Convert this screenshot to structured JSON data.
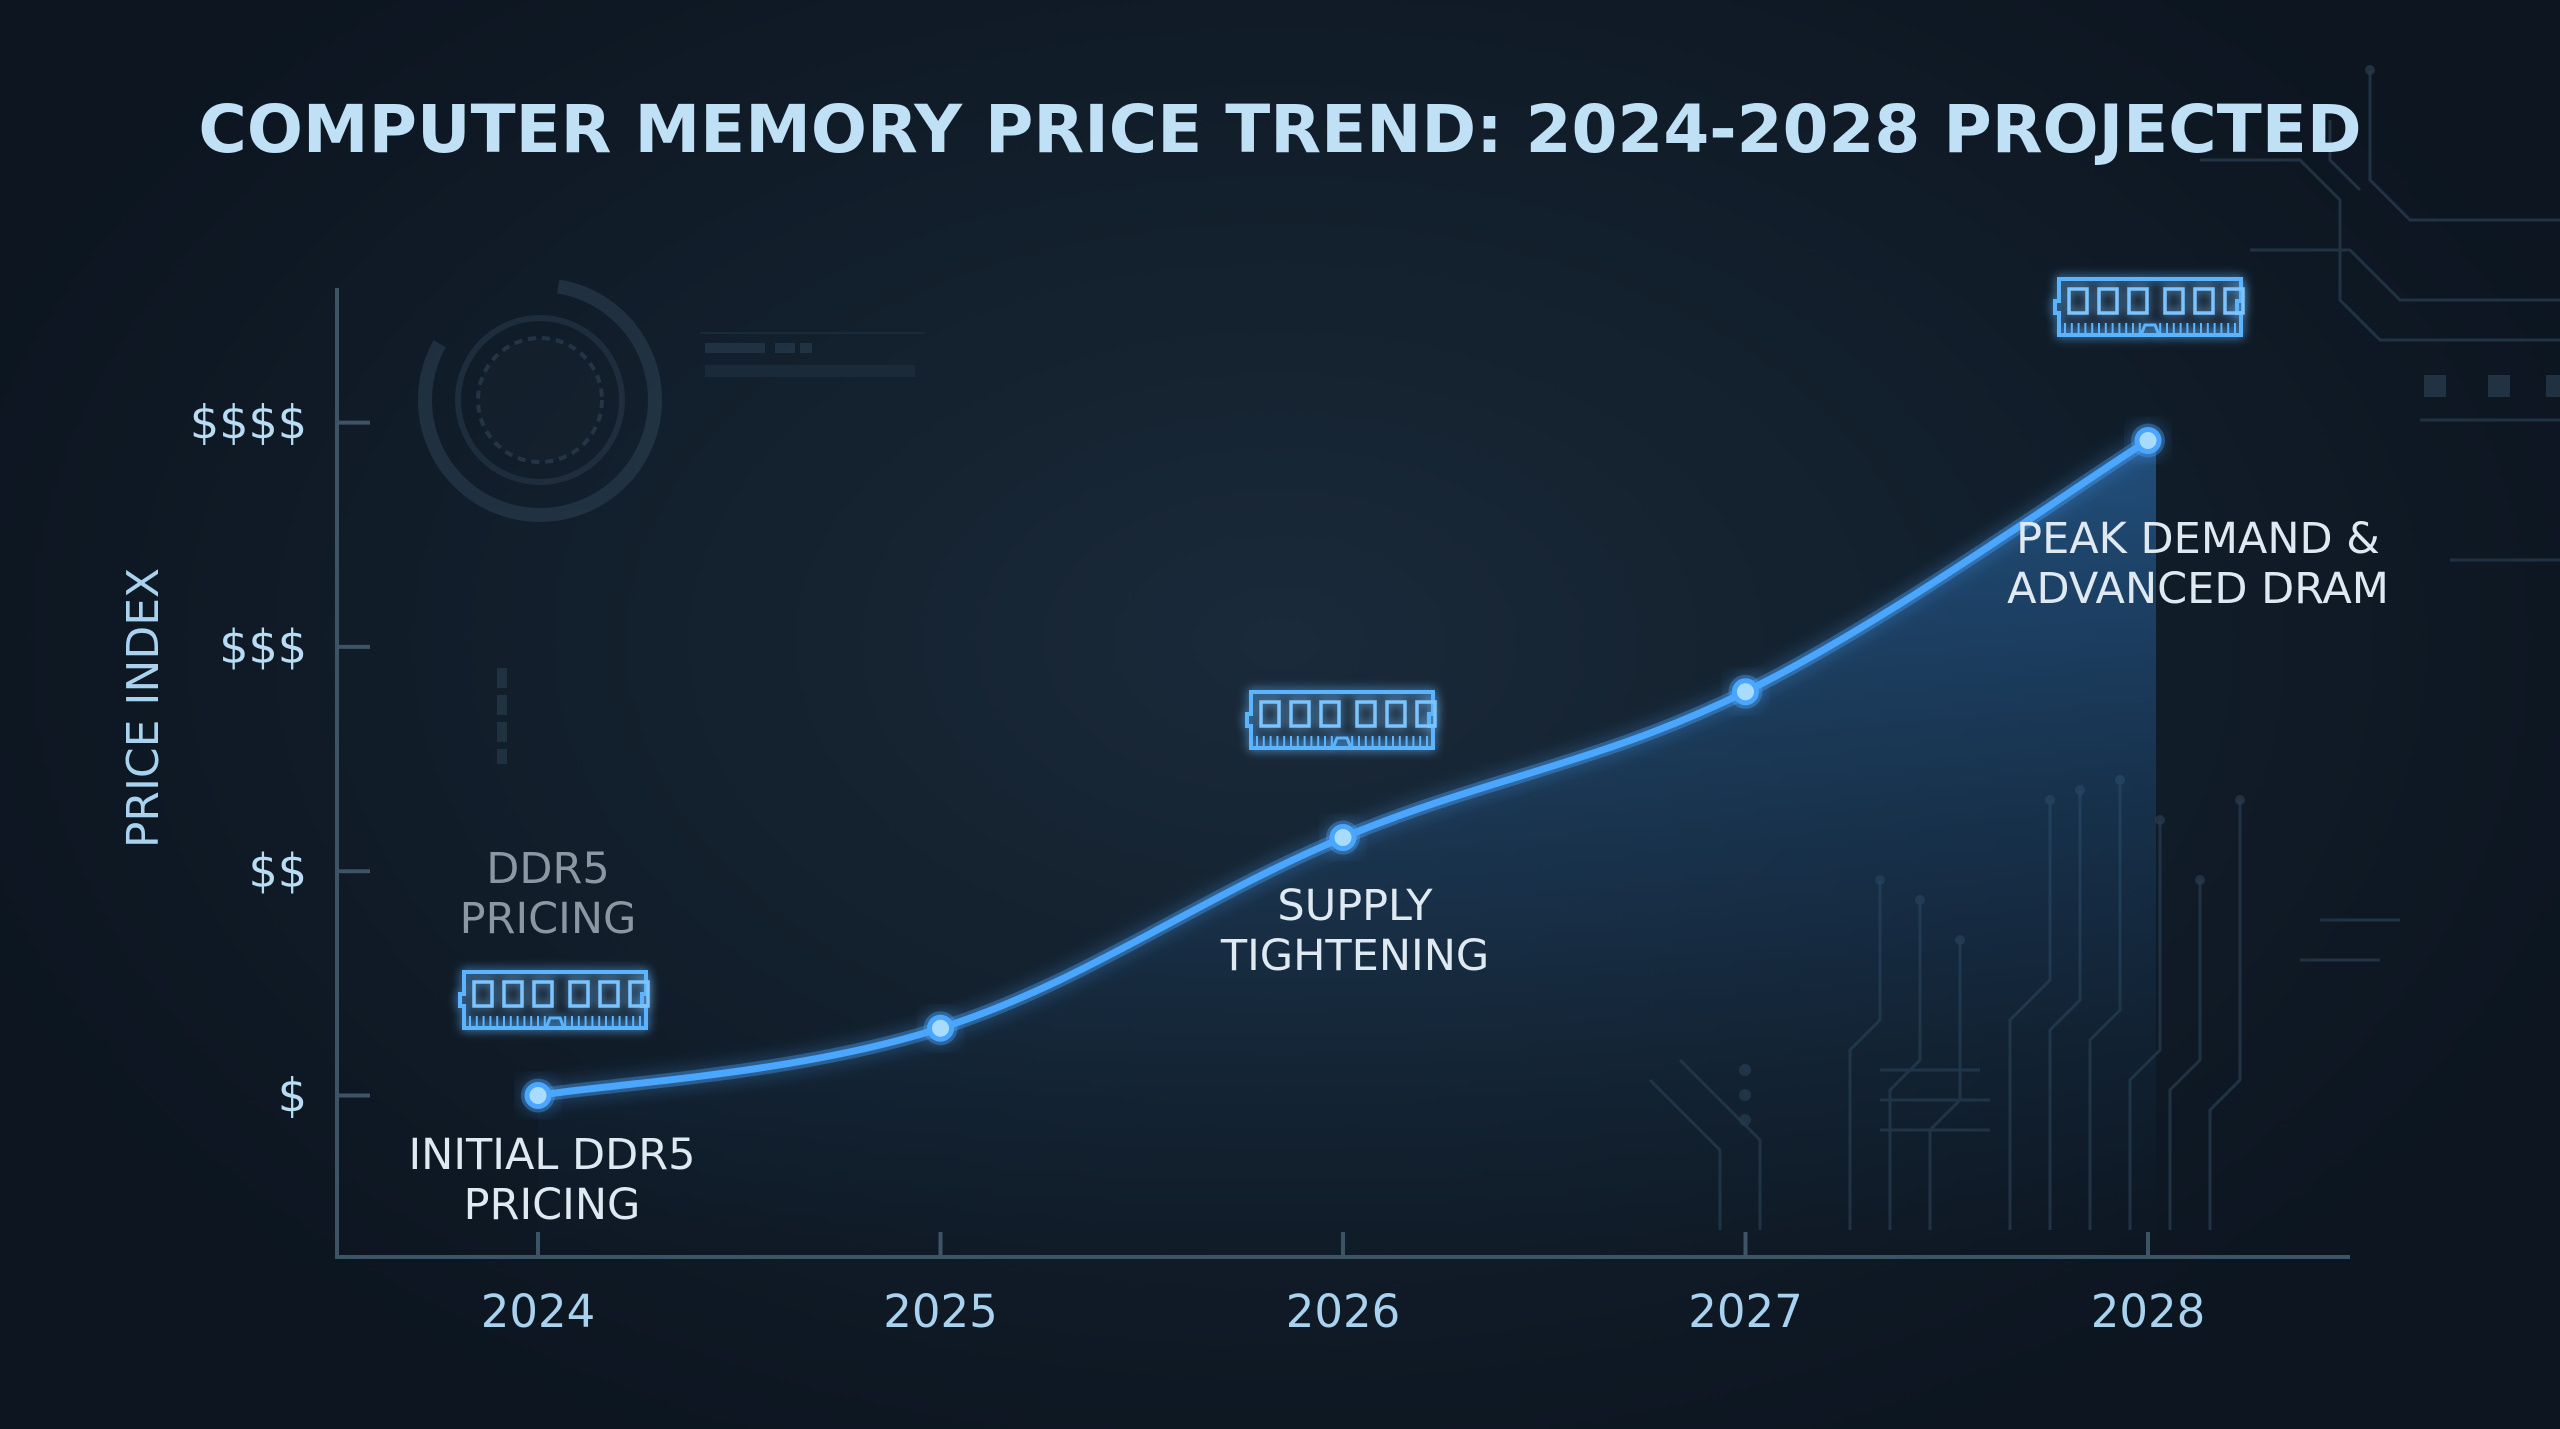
{
  "chart_data": {
    "type": "line",
    "title": "COMPUTER MEMORY PRICE TREND: 2024-2028 PROJECTED",
    "ylabel": "PRICE INDEX",
    "xlabel": "",
    "categories": [
      "2024",
      "2025",
      "2026",
      "2027",
      "2028"
    ],
    "series": [
      {
        "values": [
          1.0,
          1.3,
          2.15,
          2.8,
          3.92
        ]
      }
    ],
    "y_ticks": [
      {
        "value": 1,
        "label": "$"
      },
      {
        "value": 2,
        "label": "$$"
      },
      {
        "value": 3,
        "label": "$$$"
      },
      {
        "value": 4,
        "label": "$$$$"
      }
    ],
    "ylim": [
      0.28,
      4.6
    ],
    "grid": false,
    "annotations": [
      {
        "category": "2024",
        "lines": [
          "INITIAL DDR5",
          "PRICING"
        ],
        "placement": "below",
        "style": "bright"
      },
      {
        "category": "2024",
        "lines": [
          "DDR5",
          "PRICING"
        ],
        "placement": "above",
        "style": "dim"
      },
      {
        "category": "2026",
        "lines": [
          "SUPPLY",
          "TIGHTENING"
        ],
        "placement": "below",
        "style": "bright"
      },
      {
        "category": "2028",
        "lines": [
          "PEAK DEMAND &",
          "ADVANCED DRAM"
        ],
        "placement": "below-right",
        "style": "bright"
      }
    ],
    "memory_module_icons": [
      "2024",
      "2026",
      "2028"
    ],
    "colors": {
      "line": "#4aa6ff",
      "point": "#a8dcff",
      "axis": "#3d5366",
      "fill": "#2a6aa8"
    }
  }
}
